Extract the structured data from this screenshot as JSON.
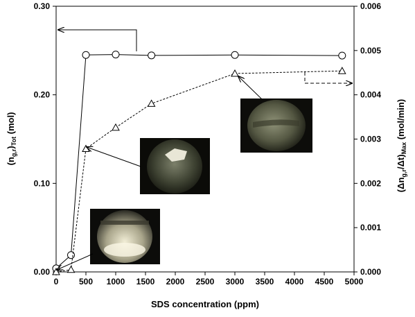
{
  "chart_data": {
    "type": "line",
    "title": "",
    "xlabel": "SDS concentration  (ppm)",
    "ylabel_left": {
      "main": "(n",
      "sub1": "g,r",
      "mid": ")",
      "sub2": "Tot",
      "unit": " (mol)"
    },
    "ylabel_right": {
      "main": "(Δn",
      "sub1": "g,r",
      "mid": "/Δt)",
      "sub2": "Max",
      "unit": " (mol/min)"
    },
    "xlim": [
      0,
      5000
    ],
    "ylim_left": [
      0,
      0.3
    ],
    "ylim_right": [
      0,
      0.006
    ],
    "x_ticks": [
      0,
      500,
      1000,
      1500,
      2000,
      2500,
      3000,
      3500,
      4000,
      4500,
      5000
    ],
    "x_tick_labels": [
      "0",
      "500",
      "1000",
      "1500",
      "2000",
      "2500",
      "3000",
      "3500",
      "4000",
      "4500",
      "5000"
    ],
    "y_left_ticks": [
      0,
      0.1,
      0.2,
      0.3
    ],
    "y_left_tick_labels": [
      "0.00",
      "0.10",
      "0.20",
      "0.30"
    ],
    "y_right_ticks": [
      0,
      0.001,
      0.002,
      0.003,
      0.004,
      0.005,
      0.006
    ],
    "y_right_tick_labels": [
      "0.000",
      "0.001",
      "0.002",
      "0.003",
      "0.004",
      "0.005",
      "0.006"
    ],
    "grid": false,
    "series": [
      {
        "axis": "left",
        "marker": "circle",
        "line": "solid",
        "x": [
          0,
          250,
          500,
          1000,
          1600,
          3000,
          4800
        ],
        "y": [
          0.004,
          0.019,
          0.245,
          0.2455,
          0.2445,
          0.245,
          0.2443
        ]
      },
      {
        "axis": "right",
        "marker": "triangle",
        "line": "dashed",
        "x": [
          0,
          250,
          500,
          1000,
          1600,
          3000,
          4800
        ],
        "y": [
          0.0,
          5e-05,
          0.00278,
          0.00326,
          0.0038,
          0.00448,
          0.00454
        ]
      }
    ],
    "photos": [
      {
        "name": "photo-250ppm",
        "points_to_x": 0,
        "points_to_y_left": 0.002
      },
      {
        "name": "photo-500ppm",
        "points_to_x": 500,
        "points_to_y_right": 0.00278
      },
      {
        "name": "photo-3000ppm",
        "points_to_x": 3000,
        "points_to_y_right": 0.00448
      }
    ]
  }
}
